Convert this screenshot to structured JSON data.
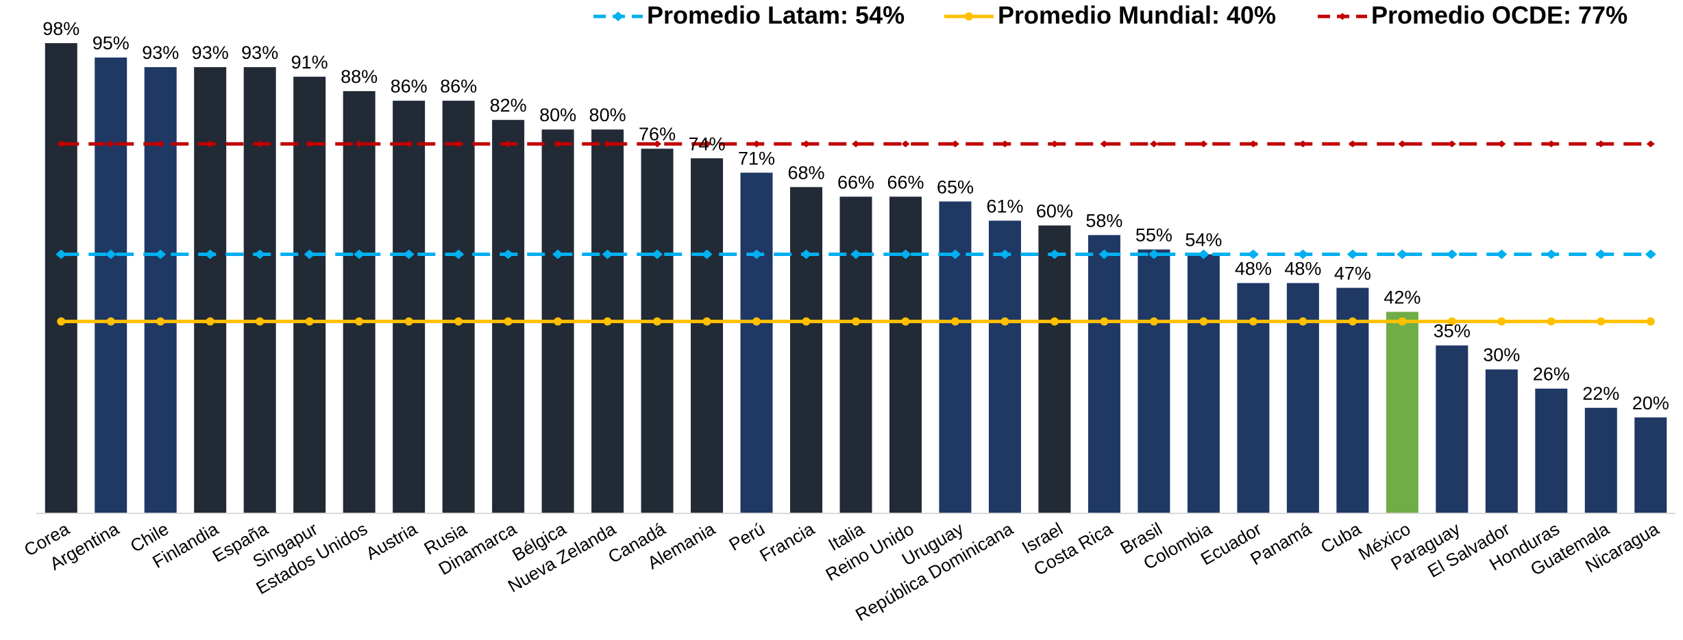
{
  "chart_data": {
    "type": "bar",
    "categories": [
      "Corea",
      "Argentina",
      "Chile",
      "Finlandia",
      "España",
      "Singapur",
      "Estados Unidos",
      "Austria",
      "Rusia",
      "Dinamarca",
      "Bélgica",
      "Nueva Zelanda",
      "Canadá",
      "Alemania",
      "Perú",
      "Francia",
      "Italia",
      "Reino Unido",
      "Uruguay",
      "República Dominicana",
      "Israel",
      "Costa Rica",
      "Brasil",
      "Colombia",
      "Ecuador",
      "Panamá",
      "Cuba",
      "México",
      "Paraguay",
      "El Salvador",
      "Honduras",
      "Guatemala",
      "Nicaragua"
    ],
    "values": [
      98,
      95,
      93,
      93,
      93,
      91,
      88,
      86,
      86,
      82,
      80,
      80,
      76,
      74,
      71,
      68,
      66,
      66,
      65,
      61,
      60,
      58,
      55,
      54,
      48,
      48,
      47,
      42,
      35,
      30,
      26,
      22,
      20
    ],
    "value_labels": [
      "98%",
      "95%",
      "93%",
      "93%",
      "93%",
      "91%",
      "88%",
      "86%",
      "86%",
      "82%",
      "80%",
      "80%",
      "76%",
      "74%",
      "71%",
      "68%",
      "66%",
      "66%",
      "65%",
      "61%",
      "60%",
      "58%",
      "55%",
      "54%",
      "48%",
      "48%",
      "47%",
      "42%",
      "35%",
      "30%",
      "26%",
      "22%",
      "20%"
    ],
    "colors": [
      "#222a35",
      "#1f3864",
      "#1f3864",
      "#222a35",
      "#222a35",
      "#222a35",
      "#222a35",
      "#222a35",
      "#222a35",
      "#222a35",
      "#222a35",
      "#222a35",
      "#222a35",
      "#222a35",
      "#1f3864",
      "#222a35",
      "#222a35",
      "#222a35",
      "#1f3864",
      "#1f3864",
      "#222a35",
      "#1f3864",
      "#1f3864",
      "#1f3864",
      "#1f3864",
      "#1f3864",
      "#1f3864",
      "#70ad47",
      "#1f3864",
      "#1f3864",
      "#1f3864",
      "#1f3864",
      "#1f3864"
    ],
    "ylim": [
      0,
      100
    ],
    "reference_lines": [
      {
        "name": "Promedio Latam: 54%",
        "value": 54,
        "color": "#00b0f0",
        "dashed": true
      },
      {
        "name": "Promedio Mundial: 40%",
        "value": 40,
        "color": "#ffc000",
        "dashed": false
      },
      {
        "name": "Promedio OCDE: 77%",
        "value": 77,
        "color": "#c00000",
        "dashed": true
      }
    ]
  }
}
